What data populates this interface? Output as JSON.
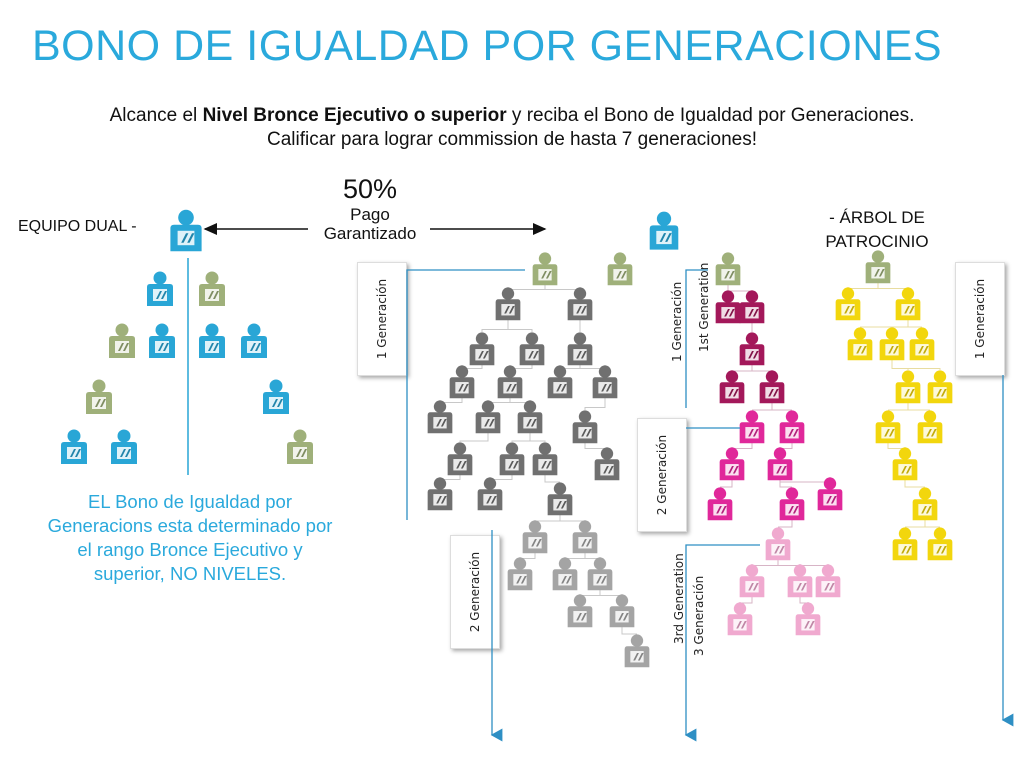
{
  "title": "BONO DE IGUALDAD POR GENERACIONES",
  "subtitle": {
    "part1": "Alcance el ",
    "bold": "Nivel Bronce Ejecutivo o superior",
    "part2": " y reciba el Bono de Igualdad por Generaciones.",
    "line2": "Calificar para lograr commission de hasta 7 generaciones!"
  },
  "payout": {
    "percent": "50%",
    "label_line1": "Pago",
    "label_line2": "Garantizado"
  },
  "labels": {
    "equipo_dual": "EQUIPO DUAL -",
    "arbol_line1": "- ÁRBOL DE",
    "arbol_line2": "PATROCINIO",
    "note": "EL Bono de Igualdad por Generacions esta determinado por el rango Bronce Ejecutivo y superior, NO NIVELES."
  },
  "generation_labels": {
    "gray_gen1": "1 Generación",
    "gray_gen2": "2 Generación",
    "pink_gen1": "1 Generación",
    "pink_gen1_en": "1st Generation",
    "pink_gen2": "2 Generación",
    "pink_gen3_en": "3rd Generation",
    "pink_gen3": "3 Generación",
    "yellow_gen1": "1 Generación"
  },
  "colors": {
    "title_blue": "#2aa9dc",
    "blue_member": "#29a6d6",
    "green_member": "#9fb07a",
    "gray_member": "#707070",
    "light_gray_member": "#a4a4a4",
    "maroon_member": "#a3185a",
    "magenta_member": "#e0289a",
    "light_pink_member": "#f0a9cf",
    "yellow_member": "#f2d60d",
    "arrow_blue": "#2e8fc4"
  },
  "icons": [
    "person-icon",
    "arrow-right-icon",
    "arrow-left-icon",
    "arrow-down-icon"
  ]
}
